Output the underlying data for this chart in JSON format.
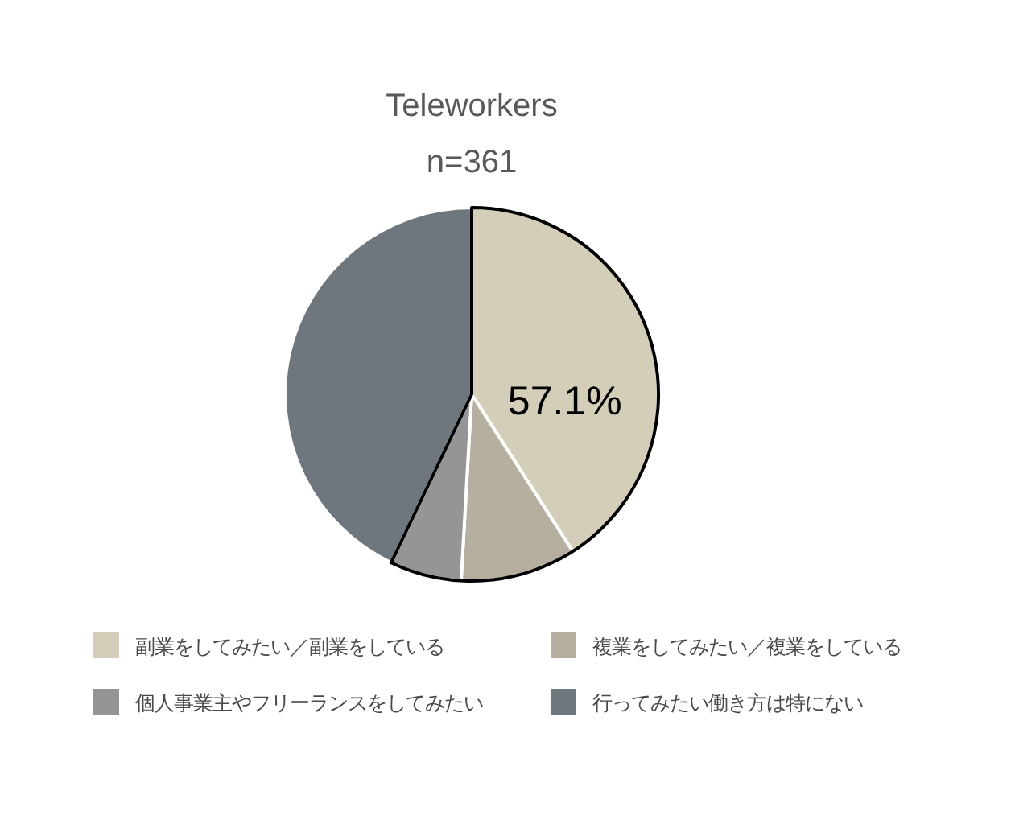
{
  "chart_data": {
    "type": "pie",
    "title": "Teleworkers",
    "subtitle": "n=361",
    "categories": [
      "副業をしてみたい／副業をしている",
      "複業をしてみたい／複業をしている",
      "個人事業主やフリーランスをしてみたい",
      "行ってみたい働き方は特にない"
    ],
    "values": [
      40.9,
      10.0,
      6.2,
      42.9
    ],
    "colors": [
      "#d4cdb7",
      "#b6af9f",
      "#959595",
      "#6f777e"
    ],
    "legend": "bottom",
    "annotations": [
      "57.1%"
    ]
  }
}
